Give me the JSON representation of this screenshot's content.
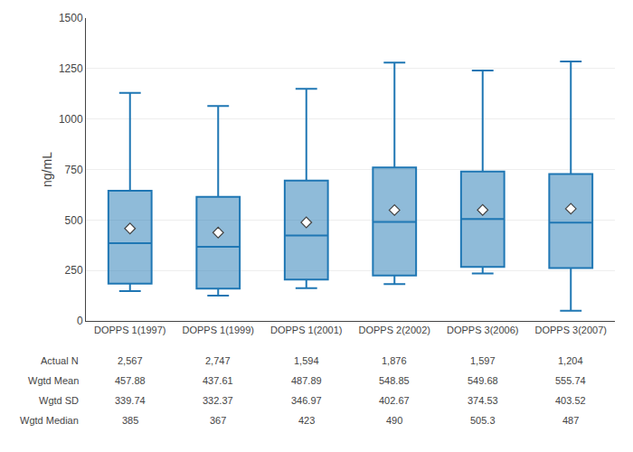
{
  "chart_data": {
    "type": "box",
    "categories": [
      "DOPPS 1(1997)",
      "DOPPS 1(1999)",
      "DOPPS 1(2001)",
      "DOPPS 2(2002)",
      "DOPPS 3(2006)",
      "DOPPS 3(2007)"
    ],
    "boxes": [
      {
        "q1": 185,
        "median": 385,
        "q3": 645,
        "whisker_low": 148,
        "whisker_high": 1130,
        "mean": 457.88
      },
      {
        "q1": 160,
        "median": 367,
        "q3": 615,
        "whisker_low": 125,
        "whisker_high": 1065,
        "mean": 437.61
      },
      {
        "q1": 205,
        "median": 423,
        "q3": 695,
        "whisker_low": 162,
        "whisker_high": 1150,
        "mean": 487.89
      },
      {
        "q1": 225,
        "median": 490,
        "q3": 760,
        "whisker_low": 183,
        "whisker_high": 1280,
        "mean": 548.85
      },
      {
        "q1": 268,
        "median": 505,
        "q3": 740,
        "whisker_low": 235,
        "whisker_high": 1240,
        "mean": 549.68
      },
      {
        "q1": 262,
        "median": 487,
        "q3": 728,
        "whisker_low": 50,
        "whisker_high": 1285,
        "mean": 555.74
      }
    ],
    "table_rows": [
      {
        "label": "Actual N",
        "values": [
          "2,567",
          "2,747",
          "1,594",
          "1,876",
          "1,597",
          "1,204"
        ]
      },
      {
        "label": "Wgtd Mean",
        "values": [
          "457.88",
          "437.61",
          "487.89",
          "548.85",
          "549.68",
          "555.74"
        ]
      },
      {
        "label": "Wgtd SD",
        "values": [
          "339.74",
          "332.37",
          "346.97",
          "402.67",
          "374.53",
          "403.52"
        ]
      },
      {
        "label": "Wgtd Median",
        "values": [
          "385",
          "367",
          "423",
          "490",
          "505.3",
          "487"
        ]
      }
    ],
    "ylabel": "ng/mL",
    "ylim": [
      0,
      1500
    ],
    "yticks": [
      0,
      250,
      500,
      750,
      1000,
      1250,
      1500
    ],
    "grid": true
  }
}
